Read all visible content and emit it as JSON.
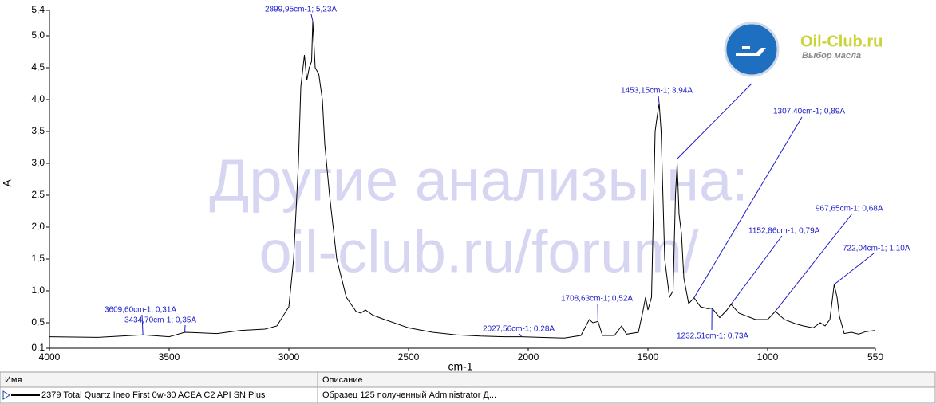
{
  "chart_data": {
    "type": "line",
    "x_label": "cm-1",
    "y_label": "A",
    "xlim": [
      4000,
      550
    ],
    "ylim": [
      0.1,
      5.4
    ],
    "xticks": [
      4000,
      3500,
      3000,
      2500,
      2000,
      1500,
      1000,
      550
    ],
    "yticks": [
      {
        "value": 0.1,
        "label": "0,1"
      },
      {
        "value": 0.5,
        "label": "0,5"
      },
      {
        "value": 1.0,
        "label": "1,0"
      },
      {
        "value": 1.5,
        "label": "1,5"
      },
      {
        "value": 2.0,
        "label": "2,0"
      },
      {
        "value": 2.5,
        "label": "2,5"
      },
      {
        "value": 3.0,
        "label": "3,0"
      },
      {
        "value": 3.5,
        "label": "3,5"
      },
      {
        "value": 4.0,
        "label": "4,0"
      },
      {
        "value": 4.5,
        "label": "4,5"
      },
      {
        "value": 5.0,
        "label": "5,0"
      },
      {
        "value": 5.4,
        "label": "5,4"
      }
    ],
    "x": [
      4000,
      3800,
      3609.6,
      3500,
      3434.7,
      3300,
      3200,
      3100,
      3050,
      3000,
      2980,
      2960,
      2950,
      2935,
      2925,
      2915,
      2905,
      2899.95,
      2890,
      2875,
      2860,
      2850,
      2830,
      2800,
      2760,
      2720,
      2700,
      2680,
      2650,
      2600,
      2500,
      2400,
      2300,
      2200,
      2100,
      2027.56,
      1950,
      1850,
      1780,
      1745,
      1730,
      1708.63,
      1690,
      1640,
      1610,
      1590,
      1540,
      1520,
      1510,
      1500,
      1485,
      1470,
      1463,
      1453.15,
      1445,
      1430,
      1410,
      1395,
      1385,
      1378,
      1370,
      1360,
      1350,
      1330,
      1307.4,
      1280,
      1250,
      1232.51,
      1200,
      1170,
      1152.86,
      1120,
      1050,
      1000,
      967.65,
      930,
      880,
      850,
      810,
      780,
      760,
      740,
      722.04,
      710,
      700,
      680,
      650,
      620,
      590,
      550
    ],
    "series": [
      {
        "name": "2379 Total Quartz Ineo First 0w-30 ACEA C2 API SN Plus",
        "color": "#000000",
        "values": [
          0.28,
          0.27,
          0.31,
          0.28,
          0.35,
          0.33,
          0.38,
          0.4,
          0.45,
          0.75,
          1.5,
          3.0,
          4.2,
          4.7,
          4.3,
          4.5,
          4.6,
          5.23,
          4.5,
          4.4,
          4.0,
          3.3,
          2.5,
          1.5,
          0.9,
          0.68,
          0.65,
          0.7,
          0.62,
          0.55,
          0.42,
          0.35,
          0.31,
          0.29,
          0.28,
          0.28,
          0.27,
          0.26,
          0.3,
          0.55,
          0.5,
          0.52,
          0.3,
          0.3,
          0.45,
          0.32,
          0.35,
          0.7,
          0.9,
          0.7,
          0.9,
          3.5,
          3.7,
          3.94,
          3.5,
          1.5,
          0.9,
          1.0,
          2.5,
          3.0,
          2.2,
          1.9,
          1.2,
          0.8,
          0.89,
          0.75,
          0.72,
          0.73,
          0.58,
          0.7,
          0.79,
          0.65,
          0.55,
          0.55,
          0.68,
          0.55,
          0.48,
          0.45,
          0.42,
          0.5,
          0.45,
          0.55,
          1.1,
          0.9,
          0.6,
          0.33,
          0.35,
          0.32,
          0.36,
          0.38
        ]
      }
    ],
    "annotations": [
      {
        "text": "2899,95cm-1; 5,23A",
        "x": 2899.95,
        "y": 5.23
      },
      {
        "text": "3609,60cm-1; 0,31A",
        "x": 3609.6,
        "y": 0.31
      },
      {
        "text": "3434,70cm-1; 0,35A",
        "x": 3434.7,
        "y": 0.35
      },
      {
        "text": "2027,56cm-1; 0,28A",
        "x": 2027.56,
        "y": 0.28
      },
      {
        "text": "1708,63cm-1; 0,52A",
        "x": 1708.63,
        "y": 0.52
      },
      {
        "text": "1453,15cm-1; 3,94A",
        "x": 1453.15,
        "y": 3.94
      },
      {
        "text": "1307,40cm-1; 0,89A",
        "x": 1307.4,
        "y": 0.89
      },
      {
        "text": "1152,86cm-1; 0,79A",
        "x": 1152.86,
        "y": 0.79
      },
      {
        "text": "967,65cm-1; 0,68A",
        "x": 967.65,
        "y": 0.68
      },
      {
        "text": "722,04cm-1; 1,10A",
        "x": 722.04,
        "y": 1.1
      },
      {
        "text": "1232,51cm-1; 0,73A",
        "x": 1232.51,
        "y": 0.73
      }
    ]
  },
  "watermark": [
    "Другие анализы на:",
    "oil-club.ru/forum/"
  ],
  "logo": {
    "title": "Oil-Club.ru",
    "subtitle": "Выбор масла"
  },
  "table": {
    "headers": [
      "Имя",
      "Описание"
    ],
    "description": "Образец 125 полученный Administrator Д..."
  }
}
